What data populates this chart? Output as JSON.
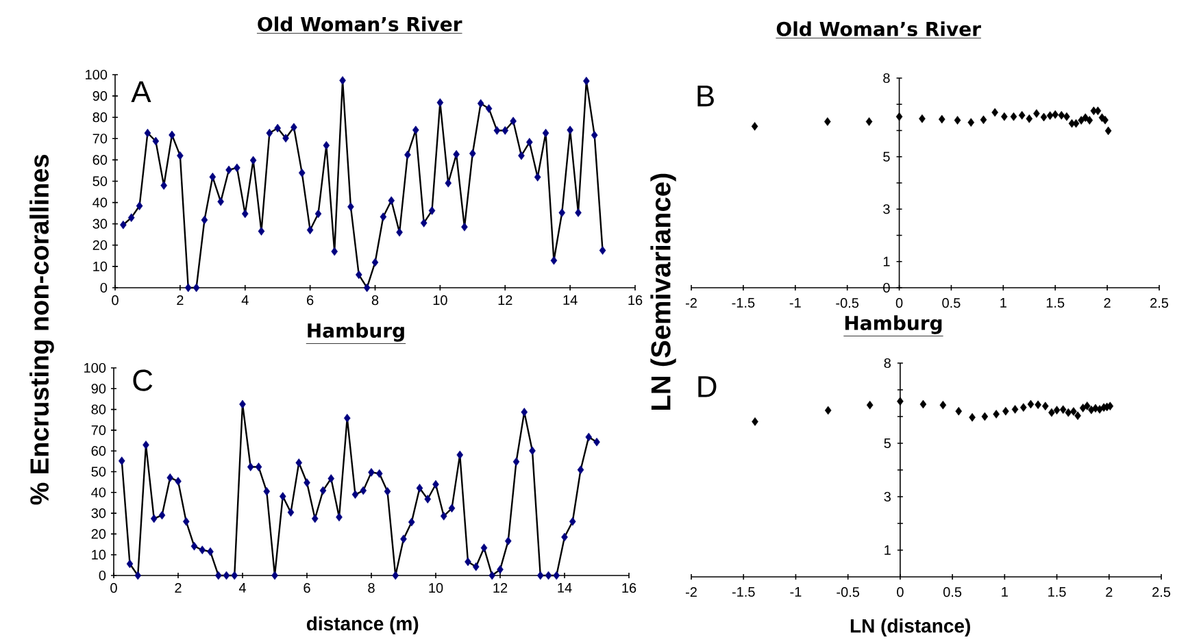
{
  "chart_data": [
    {
      "type": "line",
      "title": "Old Woman’s River",
      "ylabel": "% Encrusting non-corallines",
      "annotations": [
        "A"
      ],
      "xlim": [
        0,
        16
      ],
      "ylim": [
        0,
        100
      ],
      "xticks": [
        0,
        2,
        4,
        6,
        8,
        10,
        12,
        14,
        16
      ],
      "yticks": [
        0,
        10,
        20,
        30,
        40,
        50,
        60,
        70,
        80,
        90,
        100
      ],
      "marker": "diamond",
      "series": [
        {
          "color": "#000080",
          "x": [
            0.25,
            0.5,
            0.75,
            1,
            1.25,
            1.5,
            1.75,
            2,
            2.25,
            2.5,
            2.75,
            3,
            3.25,
            3.5,
            3.75,
            4,
            4.25,
            4.5,
            4.75,
            5,
            5.25,
            5.5,
            5.75,
            6,
            6.25,
            6.5,
            6.75,
            7,
            7.25,
            7.5,
            7.75,
            8,
            8.25,
            8.5,
            8.75,
            9,
            9.25,
            9.5,
            9.75,
            10,
            10.25,
            10.5,
            10.75,
            11,
            11.25,
            11.5,
            11.75,
            12,
            12.25,
            12.5,
            12.75,
            13,
            13.25,
            13.5,
            13.75,
            14,
            14.25,
            14.5,
            14.75,
            15
          ],
          "values": [
            29.5,
            32.9,
            38.4,
            72.6,
            68.8,
            48.0,
            71.7,
            62.0,
            0,
            0,
            31.8,
            52.0,
            40.4,
            55.3,
            56.3,
            34.7,
            59.8,
            26.5,
            72.6,
            74.9,
            70.2,
            75.3,
            53.9,
            27.1,
            34.7,
            66.8,
            17.0,
            97.3,
            38.0,
            6.1,
            0,
            11.9,
            33.3,
            40.9,
            26.0,
            62.4,
            74.0,
            30.4,
            36.2,
            86.9,
            49.1,
            62.6,
            28.5,
            63.0,
            86.5,
            84.1,
            73.8,
            73.8,
            78.2,
            62.0,
            68.3,
            51.9,
            72.6,
            12.8,
            35.2,
            74.0,
            35.2,
            97.0,
            71.6,
            17.5
          ]
        }
      ]
    },
    {
      "type": "scatter",
      "title": "Old Woman’s River",
      "ylabel": "LN (Semivariance)",
      "annotations": [
        "B"
      ],
      "xlim": [
        -2,
        2.5
      ],
      "ylim": [
        0,
        8
      ],
      "xticks": [
        -2,
        -1.5,
        -1,
        -0.5,
        0,
        0.5,
        1,
        1.5,
        2,
        2.5
      ],
      "yticks": [
        0,
        1,
        {
          "value": 2,
          "label": null
        },
        3,
        {
          "value": 4,
          "label": null
        },
        5,
        {
          "value": 6,
          "label": null
        },
        {
          "value": 7,
          "label": null
        },
        8
      ],
      "marker": "diamond",
      "series": [
        {
          "color": "#000000",
          "x": [
            -1.39,
            -0.69,
            -0.29,
            0,
            0.22,
            0.41,
            0.56,
            0.69,
            0.81,
            0.92,
            1.01,
            1.1,
            1.18,
            1.25,
            1.32,
            1.39,
            1.45,
            1.5,
            1.56,
            1.61,
            1.66,
            1.7,
            1.75,
            1.79,
            1.83,
            1.87,
            1.91,
            1.95,
            1.98,
            2.01
          ],
          "values": [
            6.16,
            6.34,
            6.34,
            6.53,
            6.45,
            6.43,
            6.39,
            6.31,
            6.41,
            6.69,
            6.53,
            6.53,
            6.58,
            6.45,
            6.65,
            6.51,
            6.57,
            6.61,
            6.58,
            6.53,
            6.27,
            6.27,
            6.39,
            6.49,
            6.39,
            6.75,
            6.75,
            6.49,
            6.4,
            5.99
          ]
        }
      ]
    },
    {
      "type": "line",
      "title": "Hamburg",
      "xlabel": "distance (m)",
      "annotations": [
        "C"
      ],
      "xlim": [
        0,
        16
      ],
      "ylim": [
        0,
        100
      ],
      "xticks": [
        0,
        2,
        4,
        6,
        8,
        10,
        12,
        14,
        16
      ],
      "yticks": [
        0,
        10,
        20,
        30,
        40,
        50,
        60,
        70,
        80,
        90,
        100
      ],
      "marker": "diamond",
      "series": [
        {
          "color": "#000080",
          "x": [
            0.25,
            0.5,
            0.75,
            1,
            1.25,
            1.5,
            1.75,
            2,
            2.25,
            2.5,
            2.75,
            3,
            3.25,
            3.5,
            3.75,
            4,
            4.25,
            4.5,
            4.75,
            5,
            5.25,
            5.5,
            5.75,
            6,
            6.25,
            6.5,
            6.75,
            7,
            7.25,
            7.5,
            7.75,
            8,
            8.25,
            8.5,
            8.75,
            9,
            9.25,
            9.5,
            9.75,
            10,
            10.25,
            10.5,
            10.75,
            11,
            11.25,
            11.5,
            11.75,
            12,
            12.25,
            12.5,
            12.75,
            13,
            13.25,
            13.5,
            13.75,
            14,
            14.25,
            14.5,
            14.75,
            15
          ],
          "values": [
            55.2,
            5.6,
            0,
            62.9,
            27.4,
            29.0,
            47.1,
            45.4,
            26.0,
            14.1,
            12.3,
            11.5,
            0,
            0,
            0,
            82.5,
            52.3,
            52.3,
            40.5,
            0,
            38.1,
            30.4,
            54.3,
            44.7,
            27.4,
            40.9,
            46.7,
            28.1,
            75.8,
            39.0,
            40.9,
            49.7,
            49.1,
            40.5,
            0,
            17.6,
            25.7,
            42.1,
            36.8,
            43.9,
            28.6,
            32.4,
            58.1,
            6.6,
            4.2,
            13.3,
            0,
            2.9,
            16.6,
            54.8,
            78.7,
            60.1,
            0,
            0,
            0,
            18.5,
            26.0,
            50.9,
            66.7,
            64.3
          ]
        }
      ]
    },
    {
      "type": "scatter",
      "title": "Hamburg",
      "xlabel": "LN (distance)",
      "annotations": [
        "D"
      ],
      "xlim": [
        -2,
        2.5
      ],
      "ylim": [
        0,
        8
      ],
      "xticks": [
        -2,
        -1.5,
        -1,
        -0.5,
        0,
        0.5,
        1,
        1.5,
        2,
        2.5
      ],
      "yticks": [
        1,
        {
          "value": 2,
          "label": null
        },
        3,
        {
          "value": 4,
          "label": null
        },
        5,
        {
          "value": 6,
          "label": null
        },
        {
          "value": 7,
          "label": null
        },
        8
      ],
      "marker": "diamond",
      "series": [
        {
          "color": "#000000",
          "x": [
            -1.39,
            -0.69,
            -0.29,
            0,
            0.22,
            0.41,
            0.56,
            0.69,
            0.81,
            0.92,
            1.01,
            1.1,
            1.18,
            1.25,
            1.32,
            1.39,
            1.45,
            1.5,
            1.56,
            1.61,
            1.66,
            1.7,
            1.75,
            1.79,
            1.83,
            1.87,
            1.91,
            1.95,
            1.98,
            2.01
          ],
          "values": [
            5.81,
            6.23,
            6.43,
            6.57,
            6.46,
            6.43,
            6.2,
            5.97,
            6.0,
            6.09,
            6.2,
            6.27,
            6.34,
            6.46,
            6.44,
            6.39,
            6.15,
            6.24,
            6.26,
            6.15,
            6.19,
            6.03,
            6.32,
            6.4,
            6.25,
            6.31,
            6.27,
            6.34,
            6.36,
            6.39
          ]
        }
      ]
    }
  ]
}
